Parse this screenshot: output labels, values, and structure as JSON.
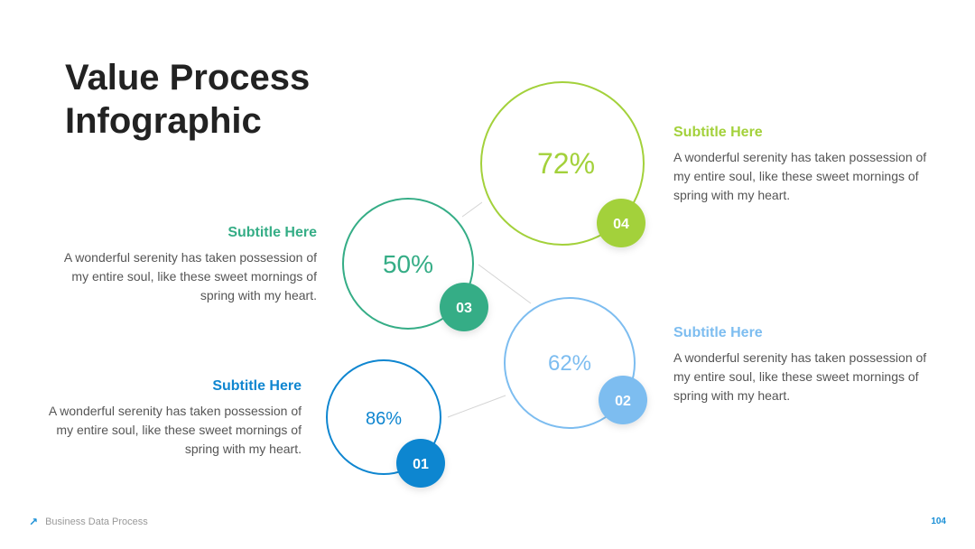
{
  "title": {
    "line1": "Value Process",
    "line2": "Infographic"
  },
  "steps": [
    {
      "number": "01",
      "percent": 86,
      "percent_text": "86%",
      "subtitle": "Subtitle Here",
      "description": "A wonderful serenity has taken possession of my entire soul, like these sweet mornings of spring with my heart.",
      "color": "#0f86d0"
    },
    {
      "number": "02",
      "percent": 62,
      "percent_text": "62%",
      "subtitle": "Subtitle Here",
      "description": "A wonderful serenity has taken possession of my entire soul, like these sweet mornings of spring with my heart.",
      "color": "#7dbdf0"
    },
    {
      "number": "03",
      "percent": 50,
      "percent_text": "50%",
      "subtitle": "Subtitle Here",
      "description": "A wonderful serenity has taken possession of my entire soul, like these sweet mornings of spring with my heart.",
      "color": "#35ad86"
    },
    {
      "number": "04",
      "percent": 72,
      "percent_text": "72%",
      "subtitle": "Subtitle Here",
      "description": "A wonderful serenity has taken possession of my entire soul, like these sweet mornings of spring with my heart.",
      "color": "#a3d13b"
    }
  ],
  "footer": {
    "icon": "arrow-up-right-icon",
    "text": "Business Data Process",
    "page_number": "104"
  }
}
